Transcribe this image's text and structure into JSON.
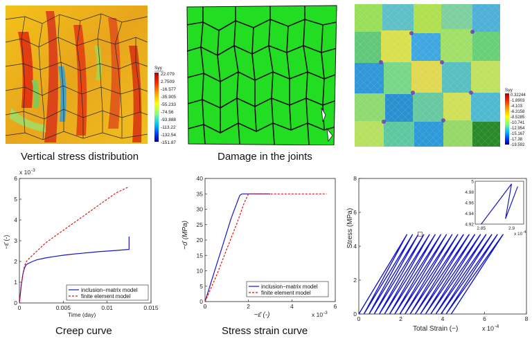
{
  "captions": {
    "top_left": "Vertical stress distribution",
    "top_middle": "Damage in the joints",
    "bottom_left": "Creep curve",
    "bottom_middle": "Stress strain curve"
  },
  "colorbar_1": {
    "title": "Syy",
    "ticks": [
      "22.079",
      "2.7509",
      "-16.577",
      "-35.905",
      "-55.233",
      "-74.56",
      "-93.888",
      "-113.22",
      "-132.54",
      "-151.87"
    ]
  },
  "colorbar_3": {
    "title": "Syy",
    "ticks": [
      "0.32244",
      "-1.8903",
      "-4.103",
      "-6.3158",
      "-8.5285",
      "-10.741",
      "-12.954",
      "-15.167",
      "-17.38",
      "-19.592"
    ]
  },
  "colors": {
    "blue": "#1515c8",
    "red": "#e01010",
    "green": "#22dd22"
  },
  "chart_data": [
    {
      "type": "line",
      "ylabel": "−ε̄ (-)",
      "xlabel": "Time (day)",
      "xlim": [
        0,
        0.015
      ],
      "ylim": [
        0,
        0.006
      ],
      "y_exponent": "x 10",
      "y_exponent_power": "-3",
      "x_ticks": [
        "0",
        "0.005",
        "0.01",
        "0.015"
      ],
      "y_ticks": [
        "0",
        "1",
        "2",
        "3",
        "4",
        "5",
        "6"
      ],
      "legend_position": "bottom-right",
      "series": [
        {
          "name": "inclusion−matrix model",
          "color": "#1515c8",
          "dash": "solid",
          "x": [
            0,
            0.0002,
            0.0004,
            0.0006,
            0.0008,
            0.001,
            0.0015,
            0.002,
            0.003,
            0.004,
            0.005,
            0.006,
            0.007,
            0.008,
            0.009,
            0.01,
            0.011,
            0.0122,
            0.0125,
            0.0125
          ],
          "y": [
            0,
            0.0008,
            0.0014,
            0.0017,
            0.00185,
            0.0019,
            0.002,
            0.00208,
            0.00217,
            0.00224,
            0.0023,
            0.00235,
            0.00239,
            0.00243,
            0.00247,
            0.0025,
            0.00253,
            0.00257,
            0.00258,
            0.0032
          ]
        },
        {
          "name": "finite element model",
          "color": "#e01010",
          "dash": "dashed",
          "x": [
            0,
            0.0002,
            0.0004,
            0.0006,
            0.0008,
            0.001,
            0.002,
            0.003,
            0.004,
            0.005,
            0.006,
            0.007,
            0.008,
            0.009,
            0.01,
            0.011,
            0.0125
          ],
          "y": [
            0,
            0.0008,
            0.0014,
            0.0018,
            0.002,
            0.0021,
            0.0025,
            0.0029,
            0.0032,
            0.0035,
            0.0038,
            0.0041,
            0.0044,
            0.0047,
            0.005,
            0.0053,
            0.0056
          ]
        }
      ]
    },
    {
      "type": "line",
      "ylabel": "−σ̄  (MPa)",
      "xlabel": "−ε̄ (-)",
      "xlim": [
        0,
        0.006
      ],
      "ylim": [
        0,
        40
      ],
      "x_exponent": "x 10",
      "x_exponent_power": "-3",
      "x_ticks": [
        "0",
        "2",
        "4",
        "6"
      ],
      "y_ticks": [
        "0",
        "5",
        "10",
        "15",
        "20",
        "25",
        "30",
        "35",
        "40"
      ],
      "legend_position": "bottom-right",
      "series": [
        {
          "name": "inclusion−matrix model",
          "color": "#1515c8",
          "dash": "solid",
          "x": [
            0,
            0.0004,
            0.0008,
            0.0012,
            0.0016,
            0.0017,
            0.002,
            0.003
          ],
          "y": [
            0,
            9,
            18,
            27,
            34.5,
            35,
            35,
            35
          ]
        },
        {
          "name": "finite element model",
          "color": "#e01010",
          "dash": "dashed",
          "x": [
            0,
            0.0005,
            0.001,
            0.0015,
            0.0018,
            0.002,
            0.003,
            0.004,
            0.005,
            0.0056
          ],
          "y": [
            0,
            8,
            17,
            26,
            32,
            35,
            35,
            35,
            35,
            35
          ]
        }
      ]
    },
    {
      "type": "line",
      "ylabel": "Stress (MPa)",
      "xlabel": "Total Strain (−)",
      "xlim": [
        0,
        0.0008
      ],
      "ylim": [
        0,
        8.5
      ],
      "x_exponent": "x 10",
      "x_exponent_power": "-4",
      "x_ticks": [
        "0",
        "2",
        "4",
        "6",
        "8"
      ],
      "y_ticks": [
        "0",
        "2",
        "4",
        "6",
        "8"
      ],
      "cycles": {
        "count": 18,
        "peak_stress": 5,
        "first_peak_strain": 0.00023,
        "peak_spacing": 2.7e-05,
        "first_base_strain": 0,
        "base_spacing": 2.45e-05
      },
      "inset": {
        "xlim": [
          0.000284,
          0.000292
        ],
        "ylim": [
          4.92,
          5.0
        ],
        "x_ticks": [
          "2.85",
          "2.9"
        ],
        "y_ticks": [
          "4.92",
          "4.94",
          "4.96",
          "4.98",
          "5"
        ],
        "x_exponent": "x 10",
        "x_exponent_power": "-4"
      }
    }
  ]
}
